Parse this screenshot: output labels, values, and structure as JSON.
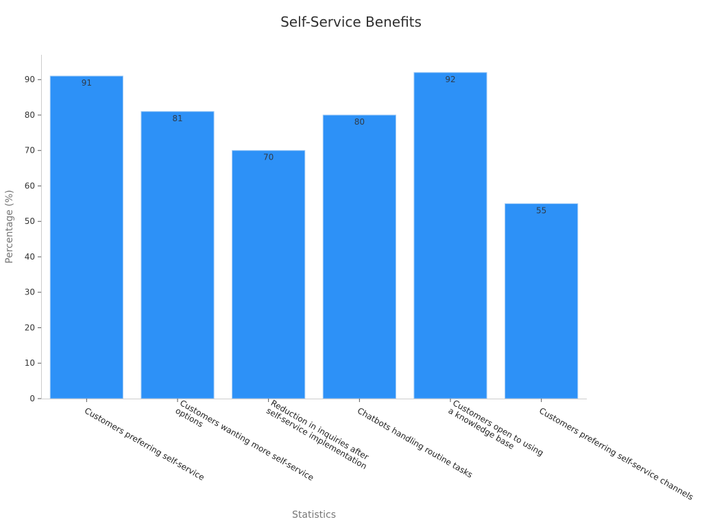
{
  "chart_data": {
    "type": "bar",
    "title": "Self-Service Benefits",
    "xlabel": "Statistics",
    "ylabel": "Percentage (%)",
    "categories": [
      [
        "Customers preferring self-service"
      ],
      [
        "Customers wanting more self-service",
        "options"
      ],
      [
        "Reduction in inquiries after",
        "self-service implementation"
      ],
      [
        "Chatbots handling routine tasks"
      ],
      [
        "Customers open to using",
        "a knowledge base"
      ],
      [
        "Customers preferring self-service channels"
      ]
    ],
    "values": [
      91,
      81,
      70,
      80,
      92,
      55
    ],
    "ylim": [
      0,
      97
    ],
    "yticks": [
      0,
      10,
      20,
      30,
      40,
      50,
      60,
      70,
      80,
      90
    ],
    "grid": false,
    "bar_color": "#2d91f7",
    "data_labels": true
  }
}
